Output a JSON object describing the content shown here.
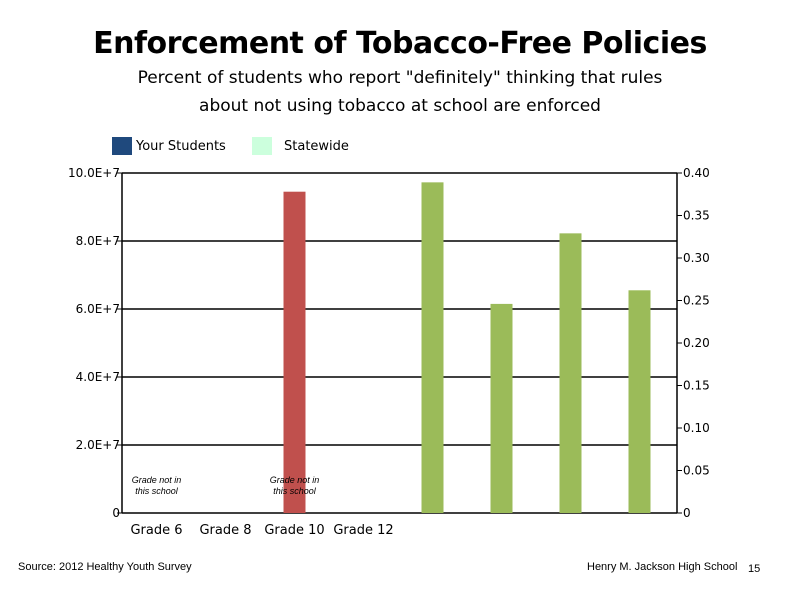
{
  "title": "Enforcement of Tobacco-Free Policies",
  "subtitle_line1": "Percent of students who report \"definitely\" thinking that rules",
  "subtitle_line2": "about not using tobacco at school are enforced",
  "legend": [
    {
      "label": "Your Students",
      "color": "#1f497d"
    },
    {
      "label": "Statewide",
      "color": "#ccffdd"
    }
  ],
  "footer": {
    "source": "Source: 2012 Healthy Youth Survey",
    "school": "Henry M. Jackson High School",
    "page": "15"
  },
  "chart_data": {
    "type": "bar",
    "categories": [
      "Grade 6",
      "Grade 8",
      "Grade 10",
      "Grade 12"
    ],
    "left_axis": {
      "ticks": [
        "0",
        "2.0E+7",
        "4.0E+7",
        "6.0E+7",
        "8.0E+7",
        "10.0E+7"
      ],
      "range": [
        0,
        100000000
      ]
    },
    "right_axis": {
      "ticks": [
        "0",
        "0.05",
        "0.10",
        "0.15",
        "0.20",
        "0.25",
        "0.30",
        "0.35",
        "0.40"
      ],
      "range": [
        0,
        0.4
      ]
    },
    "grid": true,
    "series": [
      {
        "name": "",
        "axis": "left",
        "color": "#c0504d",
        "bars": [
          {
            "category": "Grade 10",
            "value": 94500000
          }
        ]
      },
      {
        "name": "",
        "axis": "right",
        "color": "#9bbb59",
        "bars": [
          {
            "value": 0.389
          },
          {
            "value": 0.246
          },
          {
            "value": 0.329
          },
          {
            "value": 0.262
          }
        ]
      }
    ],
    "annotations": [
      {
        "category": "Grade 6",
        "line1": "Grade not in",
        "line2": "this school"
      },
      {
        "category": "Grade 10",
        "line1": "Grade not in",
        "line2": "this school"
      }
    ]
  }
}
